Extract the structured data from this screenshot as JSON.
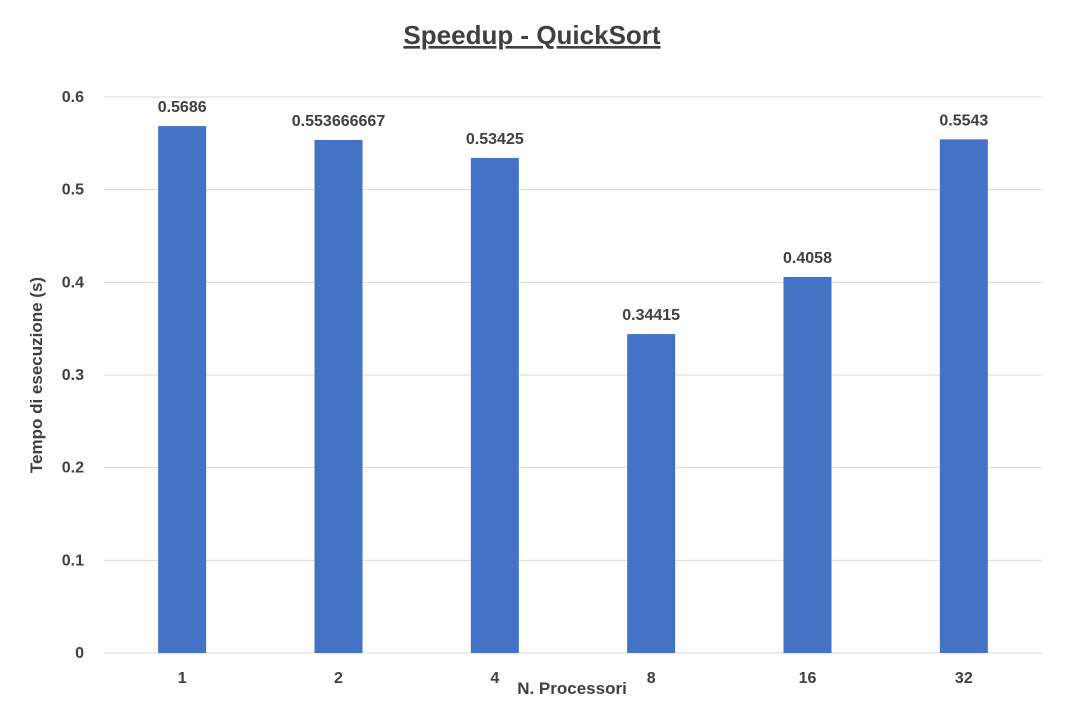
{
  "chart_data": {
    "type": "bar",
    "title": "Speedup - QuickSort",
    "xlabel": "N. Processori",
    "ylabel": "Tempo di esecuzione (s)",
    "categories": [
      "1",
      "2",
      "4",
      "8",
      "16",
      "32"
    ],
    "values": [
      0.5686,
      0.553666667,
      0.53425,
      0.34415,
      0.4058,
      0.5543
    ],
    "data_labels": [
      "0.5686",
      "0.553666667",
      "0.53425",
      "0.34415",
      "0.4058",
      "0.5543"
    ],
    "ylim": [
      0,
      0.6
    ],
    "yticks": [
      0,
      0.1,
      0.2,
      0.3,
      0.4,
      0.5,
      0.6
    ],
    "ytick_labels": [
      "0",
      "0.1",
      "0.2",
      "0.3",
      "0.4",
      "0.5",
      "0.6"
    ],
    "grid": true,
    "legend": "none",
    "bar_color": "#4472c4"
  }
}
